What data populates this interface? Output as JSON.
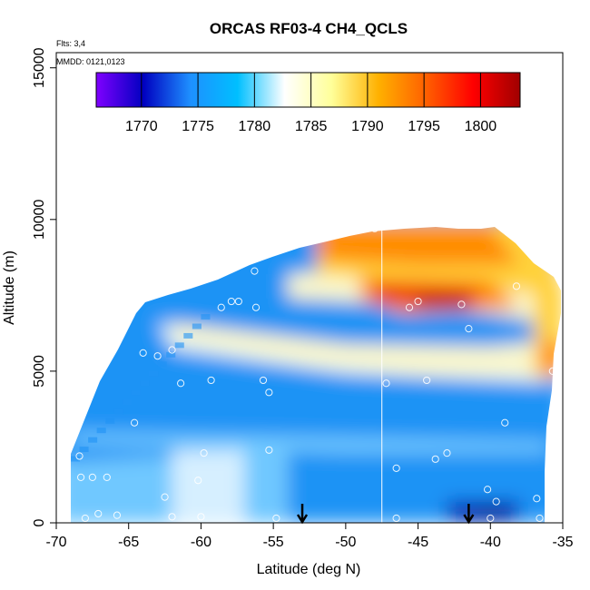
{
  "chart_data": {
    "type": "heatmap",
    "title": "ORCAS RF03-4 CH4_QCLS",
    "annotations": {
      "flights": "Flts: 3,4",
      "dates": "MMDD: 0121,0123"
    },
    "xlabel": "Latitude (deg N)",
    "ylabel": "Altitude (m)",
    "xlim": [
      -70,
      -35
    ],
    "ylim": [
      0,
      15500
    ],
    "x_ticks": [
      -70,
      -65,
      -60,
      -55,
      -50,
      -45,
      -40,
      -35
    ],
    "y_ticks": [
      0,
      5000,
      10000,
      15000
    ],
    "x_tick_labels": [
      "-70",
      "-65",
      "-60",
      "-55",
      "-50",
      "-45",
      "-40",
      "-35"
    ],
    "y_tick_labels": [
      "0",
      "5000",
      "10000",
      "15000"
    ],
    "colorbar": {
      "min": 1766,
      "max": 1803.5,
      "ticks": [
        1770,
        1775,
        1780,
        1785,
        1790,
        1795,
        1800
      ],
      "tick_labels": [
        "1770",
        "1775",
        "1780",
        "1785",
        "1790",
        "1795",
        "1800"
      ],
      "colors": [
        "#8000ff",
        "#0000c0",
        "#1e90ff",
        "#00bfff",
        "#ffffff",
        "#ffff99",
        "#ffb000",
        "#ff6000",
        "#ff0000",
        "#a00000"
      ]
    },
    "field_colors": {
      "low": "#0000b0",
      "blue": "#1f93f5",
      "light_blue": "#70c8ff",
      "pale": "#d6efff",
      "cream": "#fbf8cc",
      "yellow": "#ffd23a",
      "orange": "#ff8c00",
      "red": "#e81c0c",
      "dark_red": "#b00000"
    },
    "vertical_line_lat": -47.5,
    "arrows_lat": [
      -53,
      -41.5
    ],
    "sample_points": [
      {
        "lat": -68.4,
        "alt": 2200
      },
      {
        "lat": -68.3,
        "alt": 1500
      },
      {
        "lat": -67.5,
        "alt": 1500
      },
      {
        "lat": -66.5,
        "alt": 1500
      },
      {
        "lat": -67.1,
        "alt": 300
      },
      {
        "lat": -68.0,
        "alt": 150
      },
      {
        "lat": -65.8,
        "alt": 250
      },
      {
        "lat": -64.6,
        "alt": 3300
      },
      {
        "lat": -64.0,
        "alt": 5600
      },
      {
        "lat": -63.0,
        "alt": 5500
      },
      {
        "lat": -62.0,
        "alt": 5700
      },
      {
        "lat": -62.5,
        "alt": 850
      },
      {
        "lat": -61.4,
        "alt": 4600
      },
      {
        "lat": -60.2,
        "alt": 1400
      },
      {
        "lat": -59.8,
        "alt": 2300
      },
      {
        "lat": -59.3,
        "alt": 4700
      },
      {
        "lat": -58.6,
        "alt": 7100
      },
      {
        "lat": -57.9,
        "alt": 7300
      },
      {
        "lat": -57.4,
        "alt": 7300
      },
      {
        "lat": -56.2,
        "alt": 7100
      },
      {
        "lat": -56.3,
        "alt": 8300
      },
      {
        "lat": -55.7,
        "alt": 4700
      },
      {
        "lat": -55.3,
        "alt": 4300
      },
      {
        "lat": -55.3,
        "alt": 2400
      },
      {
        "lat": -54.8,
        "alt": 150
      },
      {
        "lat": -60.0,
        "alt": 200
      },
      {
        "lat": -62.0,
        "alt": 200
      },
      {
        "lat": -48.0,
        "alt": 9700
      },
      {
        "lat": -47.2,
        "alt": 4600
      },
      {
        "lat": -46.5,
        "alt": 1800
      },
      {
        "lat": -45.6,
        "alt": 7100
      },
      {
        "lat": -45.0,
        "alt": 7300
      },
      {
        "lat": -44.4,
        "alt": 4700
      },
      {
        "lat": -43.8,
        "alt": 2100
      },
      {
        "lat": -43.0,
        "alt": 2300
      },
      {
        "lat": -42.0,
        "alt": 7200
      },
      {
        "lat": -41.5,
        "alt": 6400
      },
      {
        "lat": -40.2,
        "alt": 1100
      },
      {
        "lat": -39.6,
        "alt": 700
      },
      {
        "lat": -39.0,
        "alt": 3300
      },
      {
        "lat": -38.2,
        "alt": 7800
      },
      {
        "lat": -36.8,
        "alt": 800
      },
      {
        "lat": -36.6,
        "alt": 150
      },
      {
        "lat": -35.7,
        "alt": 5000
      },
      {
        "lat": -46.5,
        "alt": 150
      },
      {
        "lat": -40.0,
        "alt": 150
      }
    ]
  }
}
